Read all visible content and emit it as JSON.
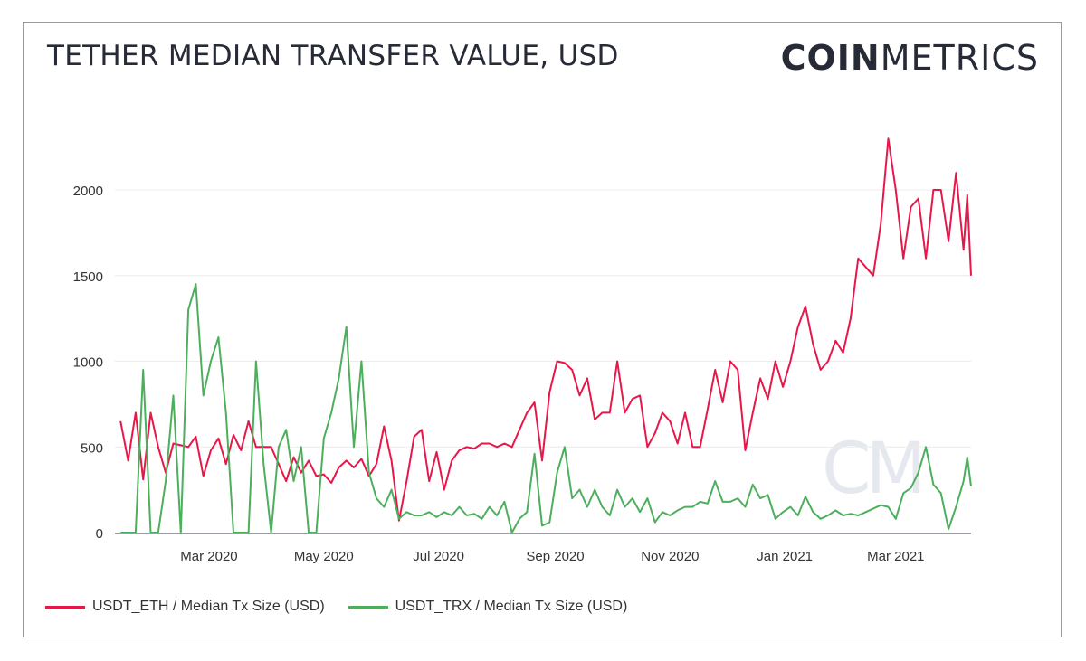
{
  "title": "TETHER MEDIAN TRANSFER VALUE, USD",
  "logo": {
    "bold": "COIN",
    "light": "METRICS",
    "watermark": "CM"
  },
  "chart_data": {
    "type": "line",
    "title": "TETHER MEDIAN TRANSFER VALUE, USD",
    "xlabel": "",
    "ylabel": "",
    "xlim": [
      "2020-01-11",
      "2021-04-10"
    ],
    "ylim": [
      0,
      2400
    ],
    "y_ticks": [
      0,
      500,
      1000,
      1500,
      2000
    ],
    "x_ticks": [
      {
        "date": "2020-03-01",
        "label": "Mar 2020"
      },
      {
        "date": "2020-05-01",
        "label": "May 2020"
      },
      {
        "date": "2020-07-01",
        "label": "Jul 2020"
      },
      {
        "date": "2020-09-01",
        "label": "Sep 2020"
      },
      {
        "date": "2020-11-01",
        "label": "Nov 2020"
      },
      {
        "date": "2021-01-01",
        "label": "Jan 2021"
      },
      {
        "date": "2021-03-01",
        "label": "Mar 2021"
      }
    ],
    "grid": true,
    "legend_position": "bottom-left",
    "x": [
      "2020-01-14",
      "2020-01-18",
      "2020-01-22",
      "2020-01-26",
      "2020-01-30",
      "2020-02-03",
      "2020-02-07",
      "2020-02-11",
      "2020-02-15",
      "2020-02-19",
      "2020-02-23",
      "2020-02-27",
      "2020-03-02",
      "2020-03-06",
      "2020-03-10",
      "2020-03-14",
      "2020-03-18",
      "2020-03-22",
      "2020-03-26",
      "2020-03-30",
      "2020-04-03",
      "2020-04-07",
      "2020-04-11",
      "2020-04-15",
      "2020-04-19",
      "2020-04-23",
      "2020-04-27",
      "2020-05-01",
      "2020-05-05",
      "2020-05-09",
      "2020-05-13",
      "2020-05-17",
      "2020-05-21",
      "2020-05-25",
      "2020-05-29",
      "2020-06-02",
      "2020-06-06",
      "2020-06-10",
      "2020-06-14",
      "2020-06-18",
      "2020-06-22",
      "2020-06-26",
      "2020-06-30",
      "2020-07-04",
      "2020-07-08",
      "2020-07-12",
      "2020-07-16",
      "2020-07-20",
      "2020-07-24",
      "2020-07-28",
      "2020-08-01",
      "2020-08-05",
      "2020-08-09",
      "2020-08-13",
      "2020-08-17",
      "2020-08-21",
      "2020-08-25",
      "2020-08-29",
      "2020-09-02",
      "2020-09-06",
      "2020-09-10",
      "2020-09-14",
      "2020-09-18",
      "2020-09-22",
      "2020-09-26",
      "2020-09-30",
      "2020-10-04",
      "2020-10-08",
      "2020-10-12",
      "2020-10-16",
      "2020-10-20",
      "2020-10-24",
      "2020-10-28",
      "2020-11-01",
      "2020-11-05",
      "2020-11-09",
      "2020-11-13",
      "2020-11-17",
      "2020-11-21",
      "2020-11-25",
      "2020-11-29",
      "2020-12-03",
      "2020-12-07",
      "2020-12-11",
      "2020-12-15",
      "2020-12-19",
      "2020-12-23",
      "2020-12-27",
      "2020-12-31",
      "2021-01-04",
      "2021-01-08",
      "2021-01-12",
      "2021-01-16",
      "2021-01-20",
      "2021-01-24",
      "2021-01-28",
      "2021-02-01",
      "2021-02-05",
      "2021-02-09",
      "2021-02-13",
      "2021-02-17",
      "2021-02-21",
      "2021-02-25",
      "2021-03-01",
      "2021-03-05",
      "2021-03-09",
      "2021-03-13",
      "2021-03-17",
      "2021-03-21",
      "2021-03-25",
      "2021-03-29",
      "2021-04-02",
      "2021-04-06",
      "2021-04-08",
      "2021-04-10"
    ],
    "series": [
      {
        "name": "USDT_ETH / Median Tx Size (USD)",
        "color": "#e8174a",
        "values": [
          650,
          420,
          700,
          310,
          700,
          500,
          350,
          520,
          510,
          500,
          560,
          330,
          480,
          550,
          400,
          570,
          480,
          650,
          500,
          500,
          500,
          400,
          300,
          440,
          350,
          420,
          330,
          340,
          290,
          380,
          420,
          380,
          430,
          330,
          400,
          620,
          420,
          70,
          300,
          560,
          600,
          300,
          470,
          250,
          420,
          480,
          500,
          490,
          520,
          520,
          500,
          520,
          500,
          600,
          700,
          760,
          420,
          820,
          1000,
          990,
          950,
          800,
          900,
          660,
          700,
          700,
          1000,
          700,
          780,
          800,
          500,
          580,
          700,
          650,
          520,
          700,
          500,
          500,
          720,
          950,
          760,
          1000,
          950,
          480,
          700,
          900,
          780,
          1000,
          850,
          1000,
          1200,
          1320,
          1100,
          950,
          1000,
          1120,
          1050,
          1250,
          1600,
          1550,
          1500,
          1800,
          2300,
          2000,
          1600,
          1900,
          1950,
          1600,
          2000,
          2000,
          1700,
          2100,
          1650,
          1970,
          1500
        ]
      },
      {
        "name": "USDT_TRX / Median Tx Size (USD)",
        "color": "#4caf5c",
        "values": [
          0,
          0,
          0,
          950,
          0,
          0,
          300,
          800,
          0,
          1300,
          1450,
          800,
          1000,
          1140,
          700,
          0,
          0,
          0,
          1000,
          400,
          0,
          500,
          600,
          300,
          500,
          0,
          0,
          550,
          700,
          900,
          1200,
          500,
          1000,
          350,
          200,
          150,
          250,
          80,
          120,
          100,
          100,
          120,
          90,
          120,
          100,
          150,
          100,
          110,
          80,
          150,
          100,
          180,
          0,
          80,
          120,
          460,
          40,
          60,
          350,
          500,
          200,
          250,
          150,
          250,
          150,
          100,
          250,
          150,
          200,
          120,
          200,
          60,
          120,
          100,
          130,
          150,
          150,
          180,
          170,
          300,
          180,
          180,
          200,
          150,
          280,
          200,
          220,
          80,
          120,
          150,
          100,
          210,
          120,
          80,
          100,
          130,
          100,
          110,
          100,
          120,
          140,
          160,
          150,
          80,
          230,
          260,
          350,
          500,
          280,
          230,
          20,
          150,
          300,
          440,
          270
        ]
      }
    ]
  }
}
